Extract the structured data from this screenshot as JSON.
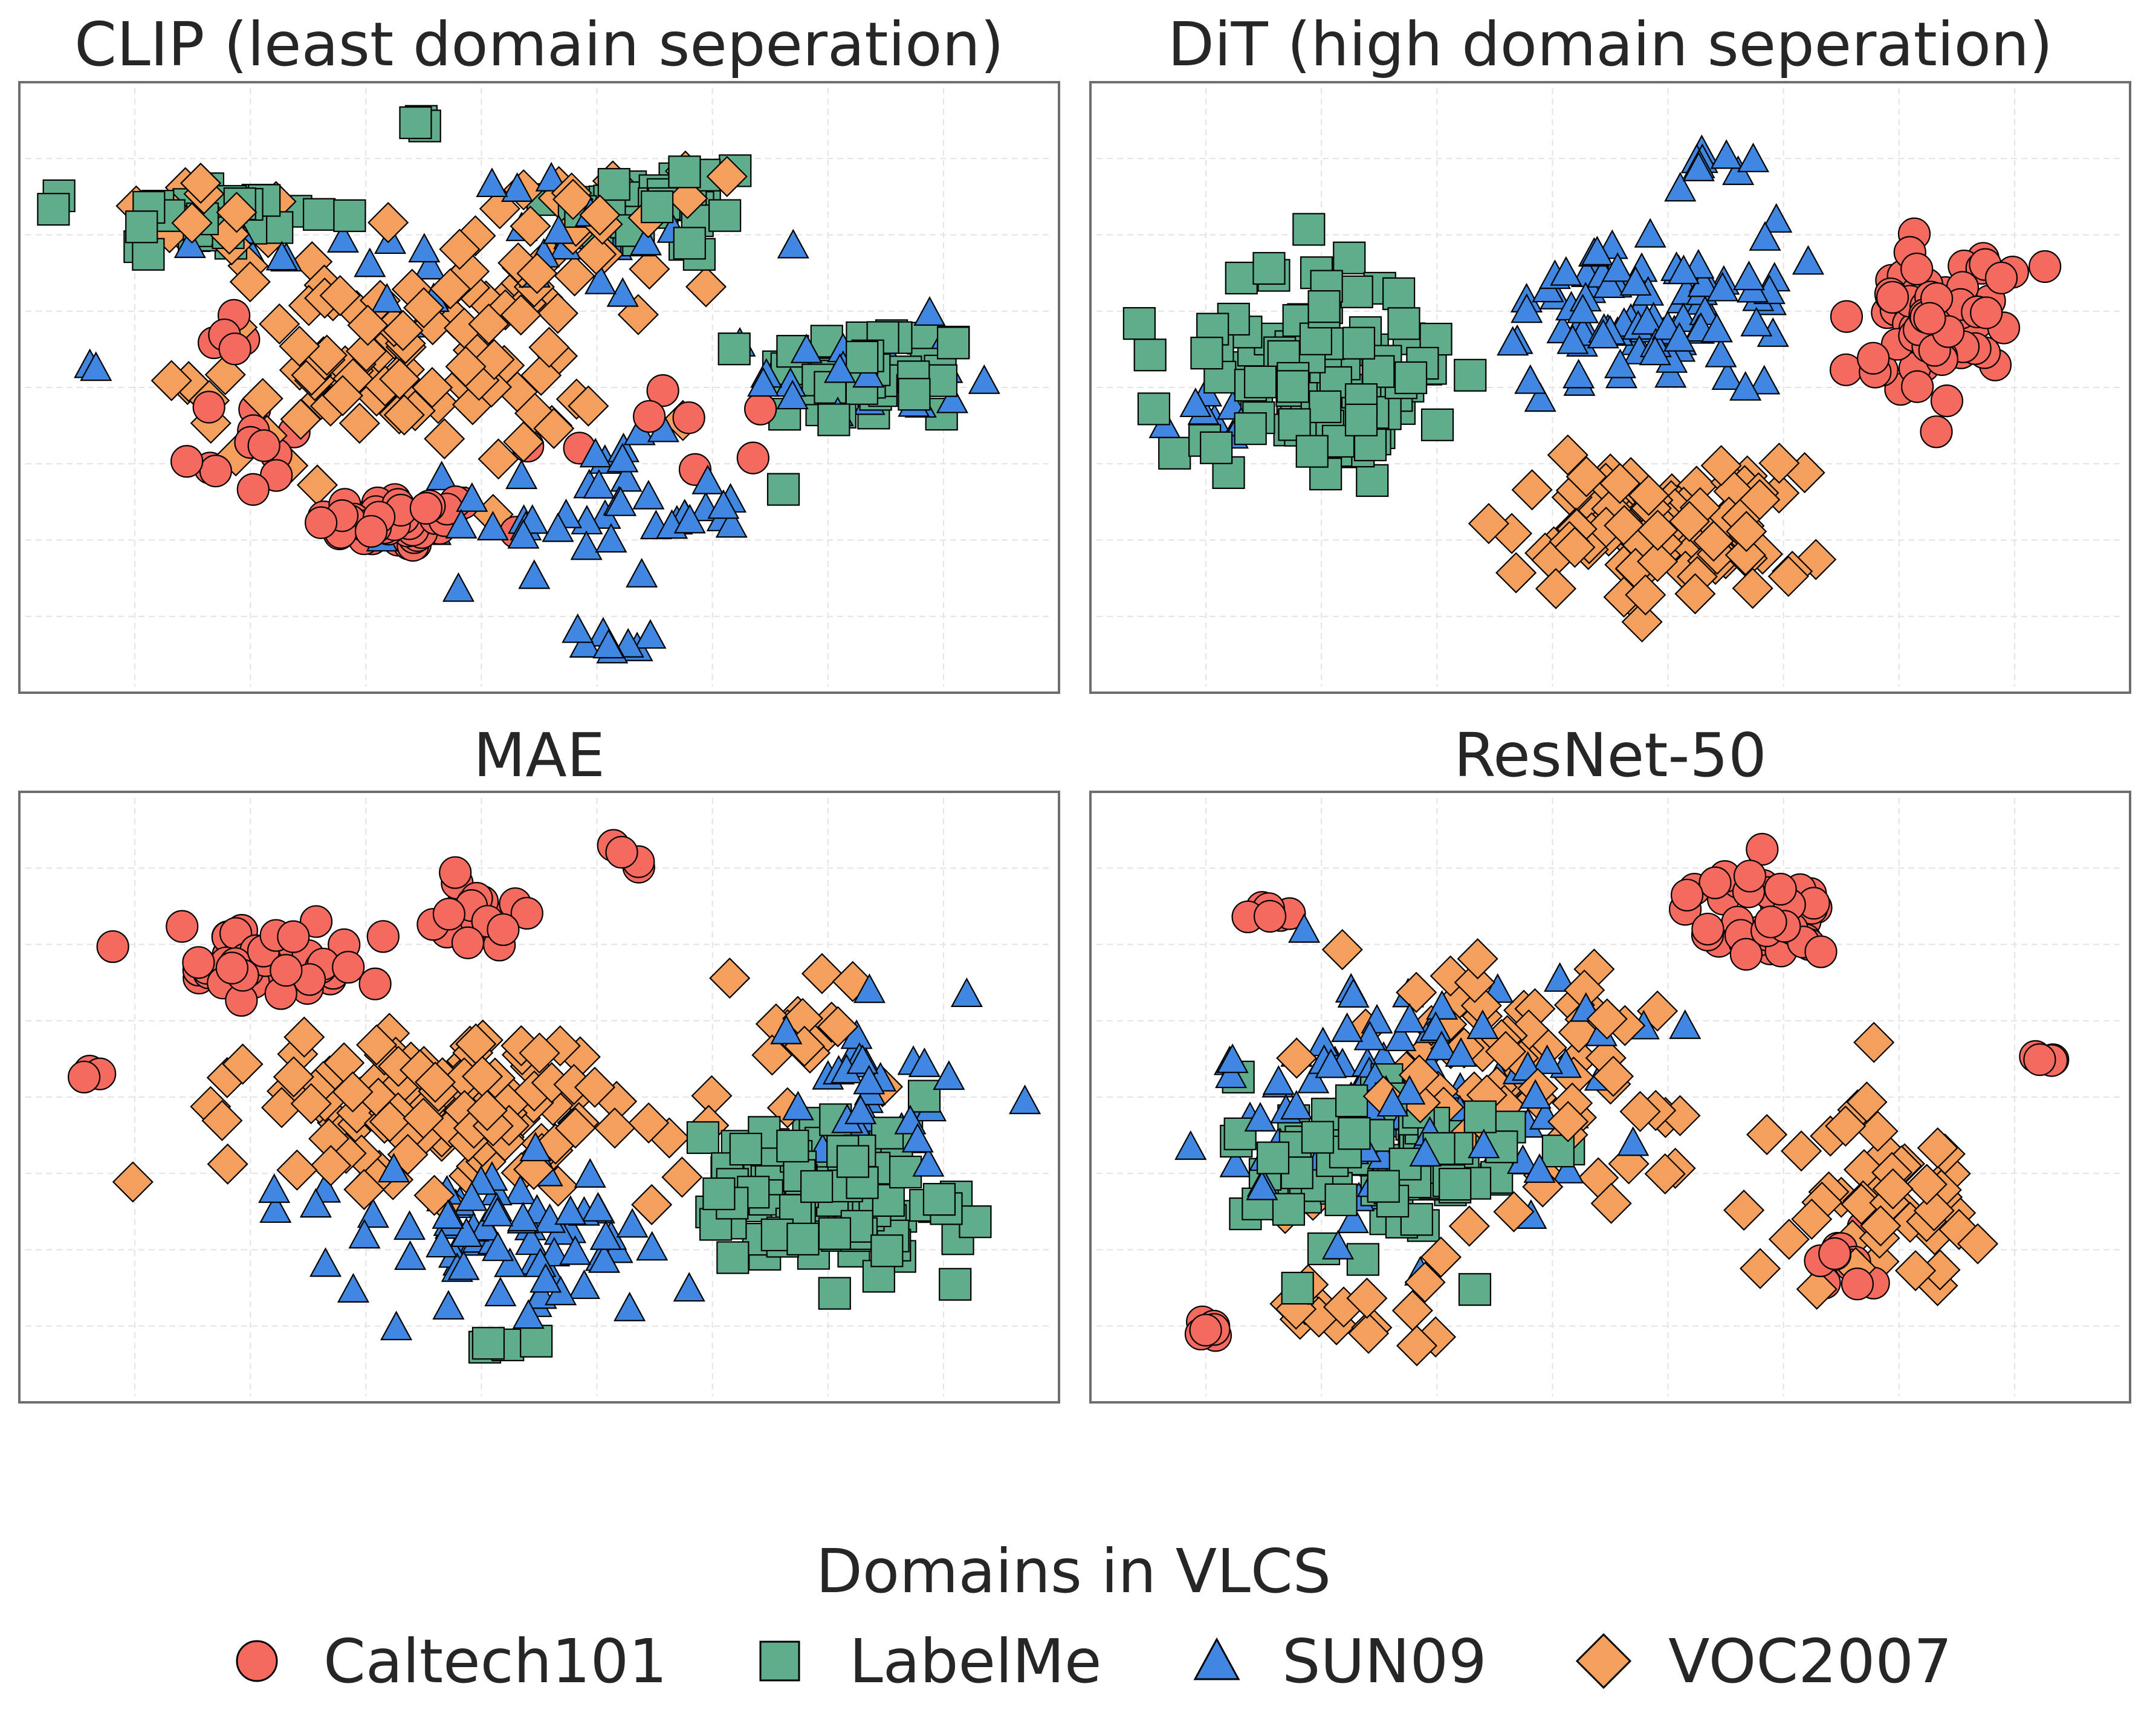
{
  "chart_data": {
    "type": "scatter",
    "legend": {
      "title": "Domains in VLCS",
      "placement": "bottom-center",
      "entries": [
        {
          "name": "Caltech101",
          "marker": "circle",
          "color": "#f46a5f"
        },
        {
          "name": "LabelMe",
          "marker": "square",
          "color": "#5fad8a"
        },
        {
          "name": "SUN09",
          "marker": "triangle",
          "color": "#3f87e0"
        },
        {
          "name": "VOC2007",
          "marker": "diamond",
          "color": "#f4a05c"
        }
      ]
    },
    "panels": [
      {
        "title": "CLIP (least domain seperation)",
        "xlim": [
          0,
          100
        ],
        "ylim": [
          0,
          100
        ],
        "grid": true,
        "series": [
          {
            "name": "Caltech101",
            "clusters": [
              {
                "x": 36,
                "y": 26,
                "sx": 7,
                "sy": 4,
                "n": 60
              },
              {
                "x": 20,
                "y": 40,
                "sx": 7,
                "sy": 8,
                "n": 12
              },
              {
                "x": 62,
                "y": 42,
                "sx": 12,
                "sy": 10,
                "n": 8
              },
              {
                "x": 18,
                "y": 60,
                "sx": 3,
                "sy": 3,
                "n": 5
              }
            ]
          },
          {
            "name": "LabelMe",
            "clusters": [
              {
                "x": 17,
                "y": 80,
                "sx": 10,
                "sy": 6,
                "n": 35
              },
              {
                "x": 62,
                "y": 82,
                "sx": 9,
                "sy": 8,
                "n": 35
              },
              {
                "x": 83,
                "y": 52,
                "sx": 9,
                "sy": 8,
                "n": 45
              },
              {
                "x": 38,
                "y": 97,
                "sx": 1,
                "sy": 1,
                "n": 3
              }
            ]
          },
          {
            "name": "SUN09",
            "clusters": [
              {
                "x": 55,
                "y": 28,
                "sx": 14,
                "sy": 10,
                "n": 45
              },
              {
                "x": 82,
                "y": 52,
                "sx": 9,
                "sy": 8,
                "n": 30
              },
              {
                "x": 48,
                "y": 75,
                "sx": 22,
                "sy": 10,
                "n": 30
              },
              {
                "x": 57,
                "y": 5,
                "sx": 6,
                "sy": 2,
                "n": 8
              },
              {
                "x": 5,
                "y": 54,
                "sx": 1,
                "sy": 1,
                "n": 2
              }
            ]
          },
          {
            "name": "VOC2007",
            "clusters": [
              {
                "x": 36,
                "y": 55,
                "sx": 17,
                "sy": 16,
                "n": 110
              },
              {
                "x": 56,
                "y": 78,
                "sx": 10,
                "sy": 8,
                "n": 30
              },
              {
                "x": 18,
                "y": 80,
                "sx": 9,
                "sy": 5,
                "n": 20
              }
            ]
          }
        ]
      },
      {
        "title": "DiT (high domain seperation)",
        "xlim": [
          0,
          100
        ],
        "ylim": [
          0,
          100
        ],
        "grid": true,
        "series": [
          {
            "name": "Caltech101",
            "clusters": [
              {
                "x": 83,
                "y": 60,
                "sx": 6,
                "sy": 10,
                "n": 70
              },
              {
                "x": 88,
                "y": 70,
                "sx": 2,
                "sy": 2,
                "n": 6
              }
            ]
          },
          {
            "name": "LabelMe",
            "clusters": [
              {
                "x": 20,
                "y": 52,
                "sx": 10,
                "sy": 14,
                "n": 120
              }
            ]
          },
          {
            "name": "SUN09",
            "clusters": [
              {
                "x": 55,
                "y": 63,
                "sx": 12,
                "sy": 12,
                "n": 95
              },
              {
                "x": 60,
                "y": 90,
                "sx": 3,
                "sy": 3,
                "n": 8
              },
              {
                "x": 10,
                "y": 45,
                "sx": 4,
                "sy": 5,
                "n": 8
              }
            ]
          },
          {
            "name": "VOC2007",
            "clusters": [
              {
                "x": 56,
                "y": 25,
                "sx": 12,
                "sy": 10,
                "n": 130
              }
            ]
          }
        ]
      },
      {
        "title": "MAE",
        "xlim": [
          0,
          100
        ],
        "ylim": [
          0,
          100
        ],
        "grid": true,
        "series": [
          {
            "name": "Caltech101",
            "clusters": [
              {
                "x": 22,
                "y": 75,
                "sx": 9,
                "sy": 6,
                "n": 55
              },
              {
                "x": 43,
                "y": 81,
                "sx": 4,
                "sy": 6,
                "n": 18
              },
              {
                "x": 59,
                "y": 93,
                "sx": 2,
                "sy": 2,
                "n": 4
              },
              {
                "x": 5,
                "y": 54,
                "sx": 1,
                "sy": 1,
                "n": 3
              }
            ]
          },
          {
            "name": "LabelMe",
            "clusters": [
              {
                "x": 78,
                "y": 33,
                "sx": 10,
                "sy": 12,
                "n": 120
              },
              {
                "x": 45,
                "y": 6,
                "sx": 2,
                "sy": 2,
                "n": 4
              }
            ]
          },
          {
            "name": "SUN09",
            "clusters": [
              {
                "x": 45,
                "y": 25,
                "sx": 14,
                "sy": 10,
                "n": 80
              },
              {
                "x": 85,
                "y": 50,
                "sx": 8,
                "sy": 12,
                "n": 35
              }
            ]
          },
          {
            "name": "VOC2007",
            "clusters": [
              {
                "x": 40,
                "y": 48,
                "sx": 17,
                "sy": 12,
                "n": 150
              },
              {
                "x": 78,
                "y": 62,
                "sx": 8,
                "sy": 8,
                "n": 15
              }
            ]
          }
        ]
      },
      {
        "title": "ResNet-50",
        "xlim": [
          0,
          100
        ],
        "ylim": [
          0,
          100
        ],
        "grid": true,
        "series": [
          {
            "name": "Caltech101",
            "clusters": [
              {
                "x": 65,
                "y": 82,
                "sx": 6,
                "sy": 7,
                "n": 45
              },
              {
                "x": 74,
                "y": 22,
                "sx": 3,
                "sy": 5,
                "n": 12
              },
              {
                "x": 15,
                "y": 83,
                "sx": 2,
                "sy": 1,
                "n": 6
              },
              {
                "x": 10,
                "y": 9,
                "sx": 2,
                "sy": 1,
                "n": 6
              },
              {
                "x": 94,
                "y": 57,
                "sx": 1,
                "sy": 1,
                "n": 4
              }
            ]
          },
          {
            "name": "LabelMe",
            "clusters": [
              {
                "x": 27,
                "y": 38,
                "sx": 12,
                "sy": 14,
                "n": 100
              }
            ]
          },
          {
            "name": "SUN09",
            "clusters": [
              {
                "x": 30,
                "y": 50,
                "sx": 16,
                "sy": 18,
                "n": 110
              }
            ]
          },
          {
            "name": "VOC2007",
            "clusters": [
              {
                "x": 40,
                "y": 52,
                "sx": 22,
                "sy": 22,
                "n": 85
              },
              {
                "x": 78,
                "y": 32,
                "sx": 8,
                "sy": 12,
                "n": 45
              },
              {
                "x": 25,
                "y": 12,
                "sx": 8,
                "sy": 4,
                "n": 15
              }
            ]
          }
        ]
      }
    ]
  }
}
